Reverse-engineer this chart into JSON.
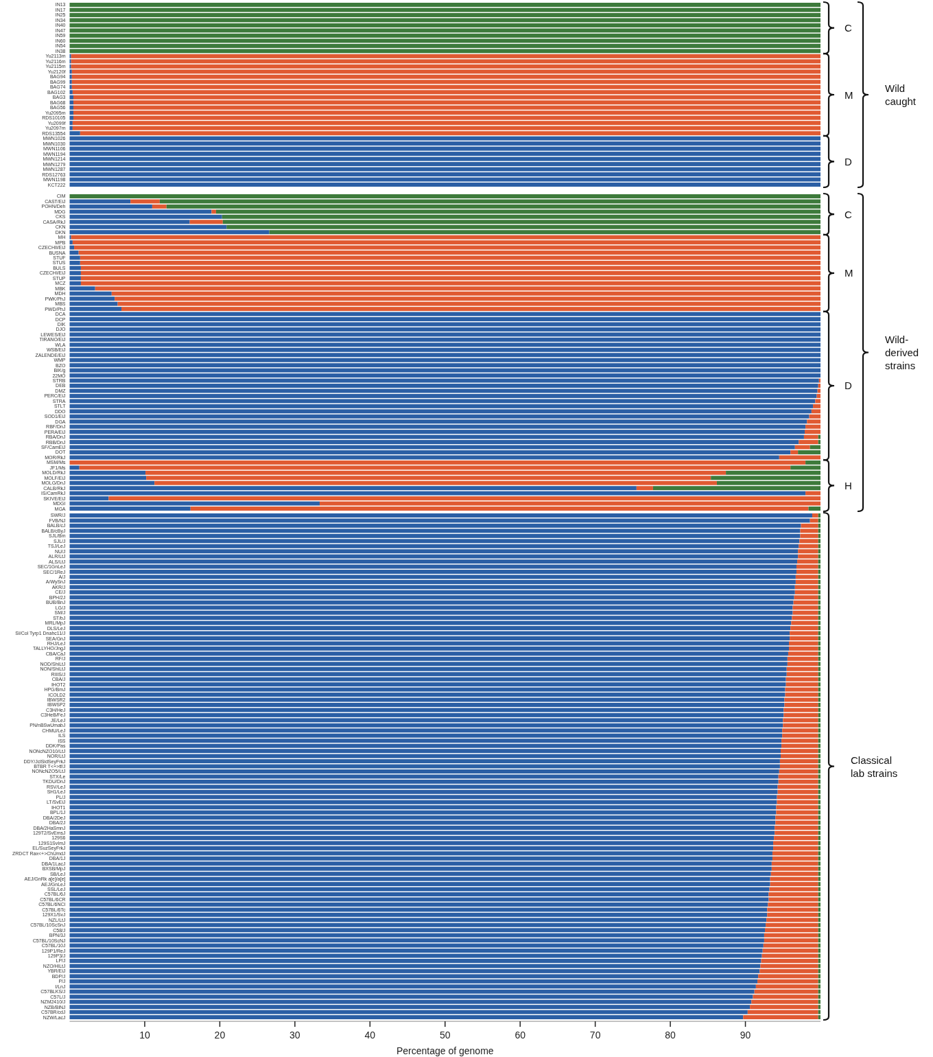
{
  "chart_data": [
    {
      "type": "bar",
      "orientation": "horizontal",
      "stacked": true,
      "tick_labels": "y",
      "xlim": [
        0,
        100
      ],
      "categories": [
        "IN13",
        "IN17",
        "IN25",
        "IN34",
        "IN40",
        "IN47",
        "IN59",
        "IN60",
        "IN54",
        "IN38",
        "Yu2113m",
        "Yu2116m",
        "Yu2115m",
        "Yu2120f",
        "BAG94",
        "BAG99",
        "BAG74",
        "BAG102",
        "BAG3",
        "BAG68",
        "BAG56",
        "Yu2095m",
        "RDS10105",
        "Yu2099f",
        "Yu2097m",
        "RDS13554",
        "MWN1026",
        "MWN1030",
        "MWN1106",
        "MWN1194",
        "MWN1214",
        "MWN1279",
        "MWN1287",
        "RDS12763",
        "MWN1198",
        "KCT222"
      ],
      "series": [
        {
          "color": "#2b5fa5",
          "values": [
            0,
            0,
            0,
            0,
            0,
            0,
            0,
            0,
            0,
            0,
            0.2,
            0.2,
            0.2,
            0.3,
            0.3,
            0.3,
            0.3,
            0.4,
            0.5,
            0.5,
            0.5,
            0.5,
            0.5,
            0.4,
            0.4,
            1.4,
            100,
            100,
            100,
            100,
            100,
            100,
            100,
            100,
            100,
            100
          ]
        },
        {
          "color": "#e05a32",
          "values": [
            0,
            0,
            0,
            0,
            0,
            0,
            0,
            0,
            0,
            0,
            99.8,
            99.8,
            99.8,
            99.7,
            99.7,
            99.7,
            99.7,
            99.6,
            99.5,
            99.5,
            99.5,
            99.5,
            99.5,
            99.6,
            99.6,
            98.6,
            0,
            0,
            0,
            0,
            0,
            0,
            0,
            0,
            0,
            0
          ]
        },
        {
          "color": "#3d7a3b",
          "values": [
            100,
            100,
            100,
            100,
            100,
            100,
            100,
            100,
            100,
            100,
            0,
            0,
            0,
            0,
            0,
            0,
            0,
            0,
            0,
            0,
            0,
            0,
            0,
            0,
            0,
            0,
            0,
            0,
            0,
            0,
            0,
            0,
            0,
            0,
            0,
            0
          ]
        }
      ],
      "annotations": [
        "C",
        "M",
        "D",
        "Wild caught"
      ]
    },
    {
      "type": "bar",
      "orientation": "horizontal",
      "stacked": true,
      "tick_labels": "y",
      "xlim": [
        0,
        100
      ],
      "categories": [
        "CIM",
        "CAST/EiJ",
        "POHN/Deh",
        "MDG",
        "CKS",
        "CASA/RkJ",
        "CKN",
        "DKN",
        "MH",
        "MPB",
        "CZECHII/EiJ",
        "BUSNA",
        "STUF",
        "STUS",
        "BULS",
        "CZECHI/EiJ",
        "STUP",
        "MCZ",
        "MBK",
        "MDH",
        "PWK/PhJ",
        "MBS",
        "PWD/PhJ",
        "DCA",
        "DCP",
        "DIK",
        "DJO",
        "LEWES/EiJ",
        "TIRANO/EiJ",
        "WLA",
        "WSB/EiJ",
        "ZALENDE/EiJ",
        "WMP",
        "BZO",
        "BIK/g",
        "22MO",
        "STRB",
        "DEB",
        "DMZ",
        "PERC/EiJ",
        "STRA",
        "STLT",
        "DDO",
        "SOD1/EiJ",
        "DGA",
        "RBF/DnJ",
        "PERA/EiJ",
        "RBA/DnJ",
        "RBB/DnJ",
        "SF/CamEiJ",
        "DOT",
        "MOR/RkJ",
        "MSM/Ms",
        "JF1/Ms",
        "MOLD/RkJ",
        "MOLF/EiJ",
        "MOLG/DnJ",
        "CALB/RkJ",
        "IS/CamRkJ",
        "SKIVE/EiJ",
        "MDGI",
        "MGA"
      ],
      "series": [
        {
          "color": "#2b5fa5",
          "values": [
            0,
            8.1,
            11.0,
            18.9,
            20.3,
            16.0,
            20.9,
            26.6,
            0.2,
            0.4,
            0.6,
            1.2,
            1.4,
            1.4,
            1.5,
            1.5,
            1.5,
            1.5,
            3.4,
            5.6,
            6.0,
            6.4,
            6.9,
            100,
            100,
            100,
            100,
            100,
            100,
            100,
            100,
            100,
            100,
            100,
            100,
            100,
            99.8,
            99.7,
            99.6,
            99.5,
            99.3,
            99.0,
            98.8,
            98.5,
            98.2,
            98.0,
            97.9,
            97.8,
            97.1,
            96.6,
            96.0,
            94.5,
            0,
            1.3,
            10.1,
            10.2,
            11.3,
            75.5,
            98.0,
            5.2,
            33.3,
            16.1
          ]
        },
        {
          "color": "#e05a32",
          "values": [
            0,
            3.9,
            1.9,
            0.6,
            0,
            4.4,
            0,
            0,
            99.8,
            99.6,
            99.4,
            98.8,
            98.6,
            98.6,
            98.5,
            98.5,
            98.5,
            98.5,
            96.6,
            94.4,
            94.0,
            93.6,
            93.1,
            0,
            0,
            0,
            0,
            0,
            0,
            0,
            0,
            0,
            0,
            0,
            0,
            0,
            0.2,
            0.3,
            0.4,
            0.5,
            0.7,
            1.0,
            1.2,
            1.5,
            1.8,
            2.0,
            2.1,
            1.9,
            2.6,
            2.0,
            1.0,
            5.5,
            98.0,
            94.7,
            77.3,
            75.2,
            74.9,
            2.2,
            2.0,
            94.8,
            66.7,
            82.3
          ]
        },
        {
          "color": "#3d7a3b",
          "values": [
            100,
            88.0,
            87.1,
            80.5,
            79.7,
            79.6,
            79.1,
            73.4,
            0,
            0,
            0,
            0,
            0,
            0,
            0,
            0,
            0,
            0,
            0,
            0,
            0,
            0,
            0,
            0,
            0,
            0,
            0,
            0,
            0,
            0,
            0,
            0,
            0,
            0,
            0,
            0,
            0,
            0,
            0,
            0,
            0,
            0,
            0,
            0,
            0,
            0,
            0,
            0.3,
            0.3,
            1.4,
            3.0,
            0,
            2.0,
            4.0,
            12.6,
            14.6,
            13.8,
            22.3,
            0,
            0,
            0,
            1.6
          ]
        }
      ],
      "annotations": [
        "C",
        "M",
        "D",
        "H",
        "Wild-derived strains"
      ]
    },
    {
      "type": "bar",
      "orientation": "horizontal",
      "stacked": true,
      "xlim": [
        0,
        100
      ],
      "xticks": [
        10,
        20,
        30,
        40,
        50,
        60,
        70,
        80,
        90
      ],
      "xlabel": "Percentage of genome",
      "categories": [
        "SWR/J",
        "FVB/NJ",
        "BALB/cJ",
        "BALB/cByJ",
        "SJL/Bm",
        "SJL/J",
        "TSJ/LeJ",
        "NU/J",
        "ALR/LtJ",
        "ALS/LtJ",
        "SEC/1GnLeJ",
        "SEC/1ReJ",
        "A/J",
        "A/WySnJ",
        "AKR/J",
        "CE/J",
        "BPH/2J",
        "BUB/BnJ",
        "LG/J",
        "SM/J",
        "ST/bJ",
        "MRL/MpJ",
        "DLS/LeJ",
        "SI/Col Tyrp1 Dnahc11/J",
        "SEA/GnJ",
        "RHJ/LeJ",
        "TALLYHO/JngJ",
        "CBA/CaJ",
        "RF/J",
        "NOD/ShiLtJ",
        "NON/ShiLtJ",
        "RIIIS/J",
        "CBA/J",
        "IHOT2",
        "HPG/BmJ",
        "ICOLD2",
        "IBWSR2",
        "IBWSP2",
        "C3H/HeJ",
        "C3HeB/FeJ",
        "JE/LeJ",
        "PN/nBSwUmabJ",
        "CHMU/LeJ",
        "ILS",
        "ISS",
        "DDK/Pas",
        "NONcNZO10/LtJ",
        "NOR/LtJ",
        "DDY/JclSidSeyFrkJ",
        "BTBR T<+>tf/J",
        "NONcNZO5/LtJ",
        "STX/Le",
        "TKDU/DnJ",
        "RSV/LeJ",
        "SH1/LeJ",
        "PL/J",
        "LT/SvEiJ",
        "IHOT1",
        "BPL/1J",
        "DBA/2DeJ",
        "DBA/2J",
        "DBA/2HaSmnJ",
        "129T2/SvEmsJ",
        "129S6",
        "129S1SvImJ",
        "EL/SuzSeyFrkJ",
        "ZRDCT Rax<+>ChUmdJ",
        "DBA/1J",
        "DBA/1LacJ",
        "BXSB/MpJ",
        "SB/LeJ",
        "AEJ/GnRk a[e]/a[e]",
        "AEJ/GnLeJ",
        "SSL/LeJ",
        "C57BL/6J",
        "C57BL/6CR",
        "C57BL/6NCI",
        "C57BL/6Tc",
        "129X1/SvJ",
        "NZL/LtJ",
        "C57BL/10ScSnJ",
        "C58/J",
        "BPN/3J",
        "C57BL/10ScNJ",
        "C57BL/10J",
        "129P1/ReJ",
        "129P3/J",
        "LP/J",
        "NZO/HlLtJ",
        "YBR/EiJ",
        "BDP/J",
        "P/J",
        "I/LnJ",
        "C57BLKS/J",
        "C57L/J",
        "NZM2410/J",
        "NZB/BlNJ",
        "C57BR/cdJ",
        "NZW/LacJ"
      ],
      "series": [
        {
          "color": "#2b5fa5",
          "values": [
            98.9,
            98.6,
            97.4,
            97.3,
            97.3,
            97.2,
            97.1,
            97.0,
            97.0,
            96.9,
            96.8,
            96.8,
            96.7,
            96.7,
            96.6,
            96.6,
            96.5,
            96.4,
            96.3,
            96.3,
            96.2,
            96.1,
            96.0,
            95.9,
            95.9,
            95.8,
            95.8,
            95.7,
            95.6,
            95.6,
            95.5,
            95.5,
            95.4,
            95.4,
            95.3,
            95.3,
            95.2,
            95.2,
            95.1,
            95.1,
            95.0,
            95.0,
            94.9,
            94.9,
            94.8,
            94.8,
            94.7,
            94.7,
            94.6,
            94.6,
            94.5,
            94.4,
            94.4,
            94.3,
            94.3,
            94.2,
            94.2,
            94.1,
            94.1,
            94.0,
            94.0,
            93.9,
            93.9,
            93.8,
            93.7,
            93.7,
            93.6,
            93.6,
            93.5,
            93.5,
            93.4,
            93.3,
            93.3,
            93.2,
            93.1,
            93.1,
            93.0,
            92.9,
            92.9,
            92.8,
            92.7,
            92.6,
            92.5,
            92.5,
            92.4,
            92.3,
            92.2,
            92.1,
            92.0,
            91.9,
            91.7,
            91.6,
            91.4,
            91.2,
            91.0,
            90.8,
            90.6,
            90.3,
            89.7
          ]
        },
        {
          "color": "#e05a32",
          "values": [
            0.8,
            1.1,
            2.3,
            2.4,
            2.4,
            2.5,
            2.6,
            2.7,
            2.7,
            2.8,
            2.9,
            2.9,
            3.0,
            3.0,
            3.1,
            3.1,
            3.2,
            3.3,
            3.4,
            3.4,
            3.5,
            3.6,
            3.7,
            3.8,
            3.8,
            3.9,
            3.9,
            4.0,
            4.1,
            4.1,
            4.2,
            4.2,
            4.3,
            4.3,
            4.4,
            4.4,
            4.5,
            4.5,
            4.6,
            4.6,
            4.7,
            4.7,
            4.8,
            4.8,
            4.9,
            4.9,
            5.0,
            5.0,
            5.1,
            5.1,
            5.2,
            5.3,
            5.3,
            5.4,
            5.4,
            5.5,
            5.5,
            5.6,
            5.6,
            5.7,
            5.7,
            5.8,
            5.8,
            5.9,
            6.0,
            6.0,
            6.1,
            6.1,
            6.2,
            6.2,
            6.3,
            6.4,
            6.4,
            6.5,
            6.6,
            6.6,
            6.7,
            6.8,
            6.8,
            6.9,
            7.0,
            7.1,
            7.2,
            7.2,
            7.3,
            7.4,
            7.5,
            7.6,
            7.7,
            7.8,
            8.0,
            8.1,
            8.3,
            8.5,
            8.7,
            8.9,
            9.1,
            9.4,
            10.0
          ]
        },
        {
          "color": "#3d7a3b",
          "values": [
            0.3,
            0.3,
            0.3,
            0.3,
            0.3,
            0.3,
            0.3,
            0.3,
            0.3,
            0.3,
            0.3,
            0.3,
            0.3,
            0.3,
            0.3,
            0.3,
            0.3,
            0.3,
            0.3,
            0.3,
            0.3,
            0.3,
            0.3,
            0.3,
            0.3,
            0.3,
            0.3,
            0.3,
            0.3,
            0.3,
            0.3,
            0.3,
            0.3,
            0.3,
            0.3,
            0.3,
            0.3,
            0.3,
            0.3,
            0.3,
            0.3,
            0.3,
            0.3,
            0.3,
            0.3,
            0.3,
            0.3,
            0.3,
            0.3,
            0.3,
            0.3,
            0.3,
            0.3,
            0.3,
            0.3,
            0.3,
            0.3,
            0.3,
            0.3,
            0.3,
            0.3,
            0.3,
            0.3,
            0.3,
            0.3,
            0.3,
            0.3,
            0.3,
            0.3,
            0.3,
            0.3,
            0.3,
            0.3,
            0.3,
            0.3,
            0.3,
            0.3,
            0.3,
            0.3,
            0.3,
            0.3,
            0.3,
            0.3,
            0.3,
            0.3,
            0.3,
            0.3,
            0.3,
            0.3,
            0.3,
            0.3,
            0.3,
            0.3,
            0.3,
            0.3,
            0.3,
            0.3,
            0.3,
            0.3
          ]
        }
      ],
      "annotations": [
        "Classical lab strains"
      ]
    }
  ]
}
